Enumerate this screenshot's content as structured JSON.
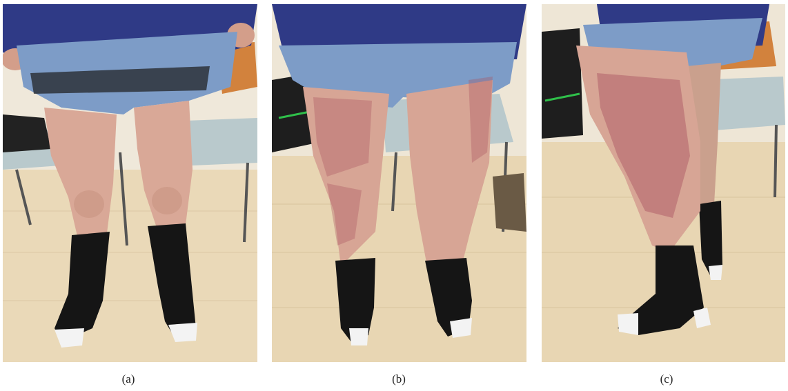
{
  "figure": {
    "panels": [
      {
        "id": "a",
        "caption": "(a)",
        "view": "front"
      },
      {
        "id": "b",
        "caption": "(b)",
        "view": "back"
      },
      {
        "id": "c",
        "caption": "(c)",
        "view": "side"
      }
    ]
  },
  "colors": {
    "wall": "#eee6d6",
    "floor": "#e9d8b6",
    "shirt": "#2f3a86",
    "shorts": "#7d9cc7",
    "skin": "#d9a897",
    "rash": "#a9525f",
    "sock": "#151515",
    "chair_seat": "#b9c9cc",
    "chair_back": "#d2823d"
  }
}
